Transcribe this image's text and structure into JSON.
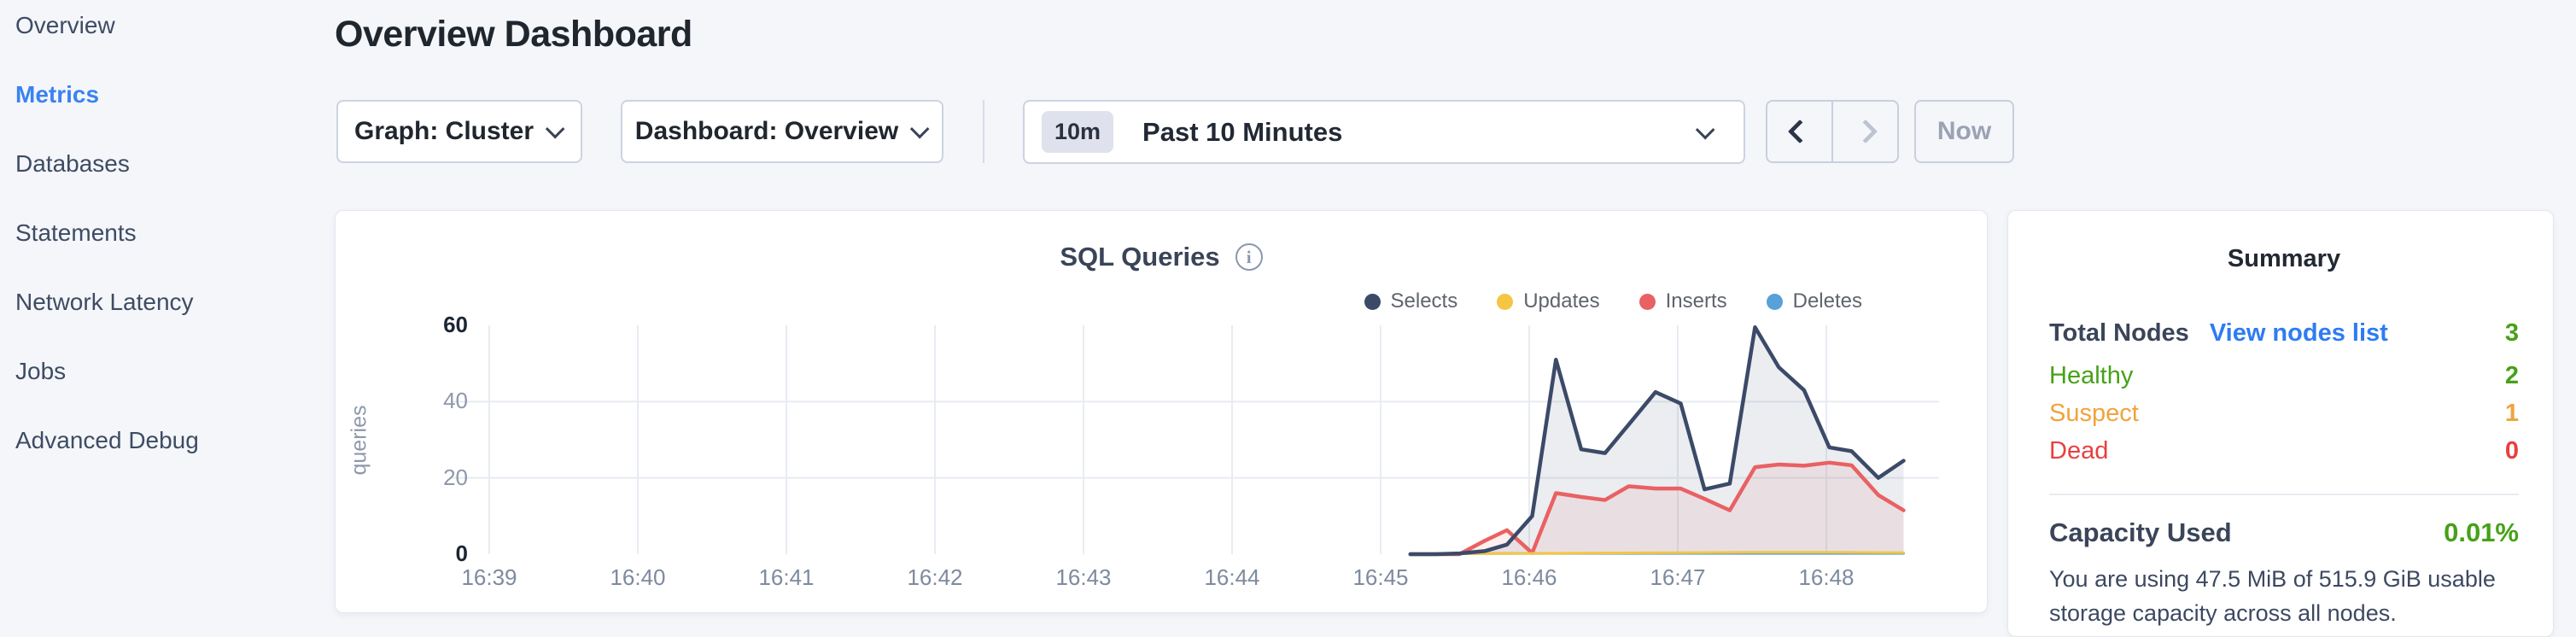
{
  "sidebar": {
    "items": [
      {
        "label": "Overview",
        "active": false
      },
      {
        "label": "Metrics",
        "active": true
      },
      {
        "label": "Databases",
        "active": false
      },
      {
        "label": "Statements",
        "active": false
      },
      {
        "label": "Network Latency",
        "active": false
      },
      {
        "label": "Jobs",
        "active": false
      },
      {
        "label": "Advanced Debug",
        "active": false
      }
    ],
    "active_color": "#3b82f0"
  },
  "header": {
    "title": "Overview Dashboard"
  },
  "toolbar": {
    "graph_selector": {
      "label": "Graph: Cluster"
    },
    "dashboard_selector": {
      "label": "Dashboard: Overview"
    },
    "time_window": {
      "badge": "10m",
      "label": "Past 10 Minutes"
    },
    "prev_enabled": true,
    "next_enabled": false,
    "now_label": "Now"
  },
  "chart_card": {
    "title": "SQL Queries"
  },
  "summary": {
    "title": "Summary",
    "total_nodes": {
      "label": "Total Nodes",
      "link": "View nodes list",
      "link_color": "#2e7cf0",
      "value": "3",
      "value_color": "#46a118"
    },
    "status_rows": [
      {
        "key": "healthy",
        "label": "Healthy",
        "value": "2",
        "color": "#46a118"
      },
      {
        "key": "suspect",
        "label": "Suspect",
        "value": "1",
        "color": "#f0a33c"
      },
      {
        "key": "dead",
        "label": "Dead",
        "value": "0",
        "color": "#e8403f"
      }
    ],
    "capacity": {
      "label": "Capacity Used",
      "value": "0.01%",
      "value_color": "#46a118",
      "description": "You are using 47.5 MiB of 515.9 GiB usable storage capacity across all nodes."
    }
  },
  "chart_data": {
    "type": "area",
    "title": "SQL Queries",
    "xlabel": "",
    "ylabel": "queries",
    "x_tick_labels": [
      "16:39",
      "16:40",
      "16:41",
      "16:42",
      "16:43",
      "16:44",
      "16:45",
      "16:46",
      "16:47",
      "16:48"
    ],
    "y_ticks": [
      0,
      20,
      40,
      60
    ],
    "ylim": [
      0,
      60
    ],
    "xlim_minutes": [
      -0.3,
      9.62
    ],
    "grid": true,
    "legend_position": "top-right",
    "x_unit": "minutes after 16:39",
    "series": [
      {
        "name": "Selects",
        "color": "#3b4a68",
        "fill": "rgba(101,115,140,0.13)",
        "stroke_width": 4.5,
        "points": [
          [
            6.2,
            0
          ],
          [
            6.37,
            0
          ],
          [
            6.53,
            0.2
          ],
          [
            6.7,
            0.8
          ],
          [
            6.85,
            2.5
          ],
          [
            7.02,
            10
          ],
          [
            7.18,
            51
          ],
          [
            7.35,
            27.5
          ],
          [
            7.51,
            26.5
          ],
          [
            7.67,
            34
          ],
          [
            7.85,
            42.5
          ],
          [
            8.02,
            39.5
          ],
          [
            8.18,
            17
          ],
          [
            8.35,
            18.5
          ],
          [
            8.52,
            59.5
          ],
          [
            8.68,
            49
          ],
          [
            8.85,
            43
          ],
          [
            9.02,
            28
          ],
          [
            9.17,
            27
          ],
          [
            9.35,
            20
          ],
          [
            9.52,
            24.5
          ]
        ]
      },
      {
        "name": "Updates",
        "color": "#f5c543",
        "fill": "rgba(245,197,67,0.12)",
        "stroke_width": 3,
        "points": [
          [
            6.2,
            0.1
          ],
          [
            7.02,
            0.2
          ],
          [
            7.51,
            0.3
          ],
          [
            8.02,
            0.4
          ],
          [
            8.52,
            0.5
          ],
          [
            9.02,
            0.5
          ],
          [
            9.52,
            0.4
          ]
        ]
      },
      {
        "name": "Inserts",
        "color": "#e96163",
        "fill": "rgba(233,97,99,0.10)",
        "stroke_width": 4.5,
        "points": [
          [
            6.2,
            0
          ],
          [
            6.53,
            0
          ],
          [
            6.7,
            3.5
          ],
          [
            6.85,
            6.3
          ],
          [
            7.02,
            0.3
          ],
          [
            7.18,
            16
          ],
          [
            7.35,
            15
          ],
          [
            7.51,
            14.2
          ],
          [
            7.67,
            17.8
          ],
          [
            7.85,
            17.2
          ],
          [
            8.02,
            17.2
          ],
          [
            8.18,
            14.5
          ],
          [
            8.35,
            11.5
          ],
          [
            8.52,
            22.8
          ],
          [
            8.68,
            23.5
          ],
          [
            8.85,
            23.2
          ],
          [
            9.02,
            24
          ],
          [
            9.17,
            23.3
          ],
          [
            9.35,
            15.5
          ],
          [
            9.52,
            11.5
          ]
        ]
      },
      {
        "name": "Deletes",
        "color": "#56a1d8",
        "fill": "rgba(86,161,216,0.12)",
        "stroke_width": 3,
        "points": [
          [
            6.2,
            0.1
          ],
          [
            7.02,
            0.2
          ],
          [
            8.02,
            0.2
          ],
          [
            9.02,
            0.2
          ],
          [
            9.52,
            0.2
          ]
        ]
      }
    ]
  }
}
